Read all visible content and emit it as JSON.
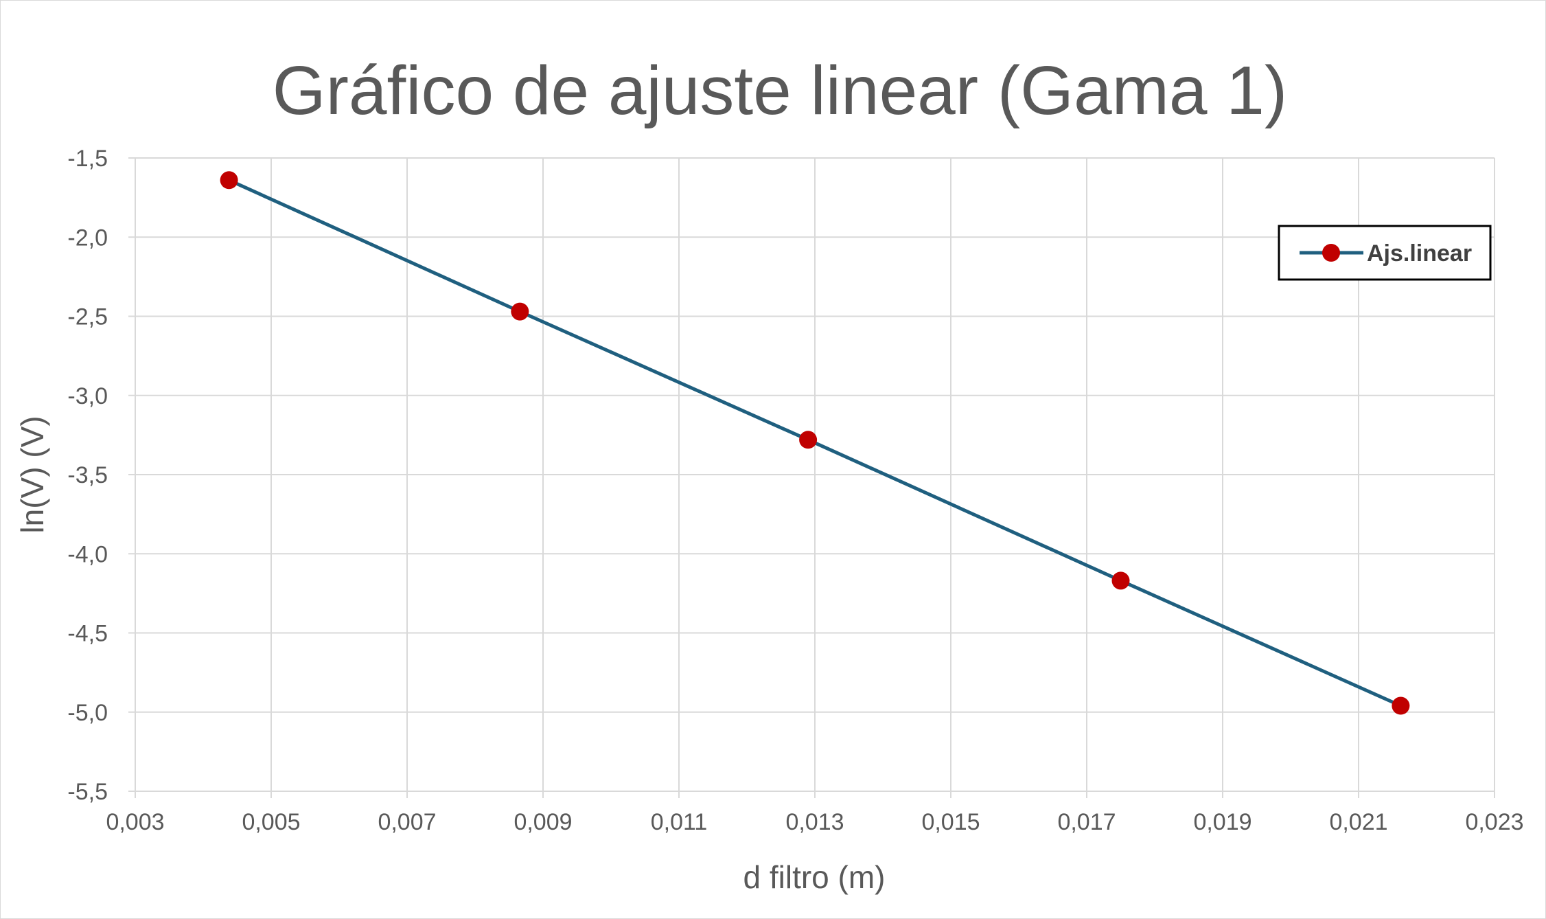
{
  "chart_data": {
    "type": "line",
    "title": "Gráfico de ajuste linear (Gama 1)",
    "xlabel": "d filtro (m)",
    "ylabel": "ln(V) (V)",
    "xlim": [
      0.003,
      0.023
    ],
    "ylim": [
      -5.5,
      -1.5
    ],
    "x_ticks": [
      "0,003",
      "0,005",
      "0,007",
      "0,009",
      "0,011",
      "0,013",
      "0,015",
      "0,017",
      "0,019",
      "0,021",
      "0,023"
    ],
    "y_ticks": [
      "-1,5",
      "-2,0",
      "-2,5",
      "-3,0",
      "-3,5",
      "-4,0",
      "-4,5",
      "-5,0",
      "-5,5"
    ],
    "grid": true,
    "legend_position": "top-right",
    "series": [
      {
        "name": "Ajs.linear",
        "x": [
          0.00438,
          0.00866,
          0.0129,
          0.0175,
          0.02162
        ],
        "y": [
          -1.64,
          -2.47,
          -3.28,
          -4.17,
          -4.96
        ]
      }
    ],
    "colors": {
      "line": "#1f5f7f",
      "marker": "#c00000",
      "grid": "#d9d9d9",
      "text": "#595959"
    }
  }
}
